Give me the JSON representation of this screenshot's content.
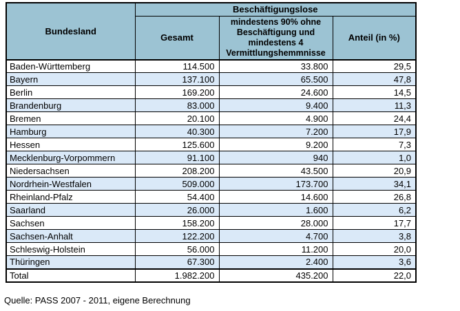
{
  "colors": {
    "header_bg": "#9cc3d3",
    "stripe_bg": "#dae9f8",
    "border": "#000000"
  },
  "table": {
    "header": {
      "bundesland": "Bundesland",
      "group": "Beschäftigungslose",
      "col_gesamt": "Gesamt",
      "col_mindestens": "mindestens 90% ohne\nBeschäftigung und\nmindestens 4\nVermittlungshemmnisse",
      "col_anteil": "Anteil (in %)"
    },
    "rows": [
      {
        "land": "Baden-Württemberg",
        "gesamt": "114.500",
        "mindestens": "33.800",
        "anteil": "29,5"
      },
      {
        "land": "Bayern",
        "gesamt": "137.100",
        "mindestens": "65.500",
        "anteil": "47,8"
      },
      {
        "land": "Berlin",
        "gesamt": "169.200",
        "mindestens": "24.600",
        "anteil": "14,5"
      },
      {
        "land": "Brandenburg",
        "gesamt": "83.000",
        "mindestens": "9.400",
        "anteil": "11,3"
      },
      {
        "land": "Bremen",
        "gesamt": "20.100",
        "mindestens": "4.900",
        "anteil": "24,4"
      },
      {
        "land": "Hamburg",
        "gesamt": "40.300",
        "mindestens": "7.200",
        "anteil": "17,9"
      },
      {
        "land": "Hessen",
        "gesamt": "125.600",
        "mindestens": "9.200",
        "anteil": "7,3"
      },
      {
        "land": "Mecklenburg-Vorpommern",
        "gesamt": "91.100",
        "mindestens": "940",
        "anteil": "1,0"
      },
      {
        "land": "Niedersachsen",
        "gesamt": "208.200",
        "mindestens": "43.500",
        "anteil": "20,9"
      },
      {
        "land": "Nordrhein-Westfalen",
        "gesamt": "509.000",
        "mindestens": "173.700",
        "anteil": "34,1"
      },
      {
        "land": "Rheinland-Pfalz",
        "gesamt": "54.400",
        "mindestens": "14.600",
        "anteil": "26,8"
      },
      {
        "land": "Saarland",
        "gesamt": "26.000",
        "mindestens": "1.600",
        "anteil": "6,2"
      },
      {
        "land": "Sachsen",
        "gesamt": "158.200",
        "mindestens": "28.000",
        "anteil": "17,7"
      },
      {
        "land": "Sachsen-Anhalt",
        "gesamt": "122.200",
        "mindestens": "4.700",
        "anteil": "3,8"
      },
      {
        "land": "Schleswig-Holstein",
        "gesamt": "56.000",
        "mindestens": "11.200",
        "anteil": "20,0"
      },
      {
        "land": "Thüringen",
        "gesamt": "67.300",
        "mindestens": "2.400",
        "anteil": "3,6"
      }
    ],
    "total": {
      "land": "Total",
      "gesamt": "1.982.200",
      "mindestens": "435.200",
      "anteil": "22,0"
    }
  },
  "source": "Quelle: PASS 2007 - 2011, eigene Berechnung"
}
